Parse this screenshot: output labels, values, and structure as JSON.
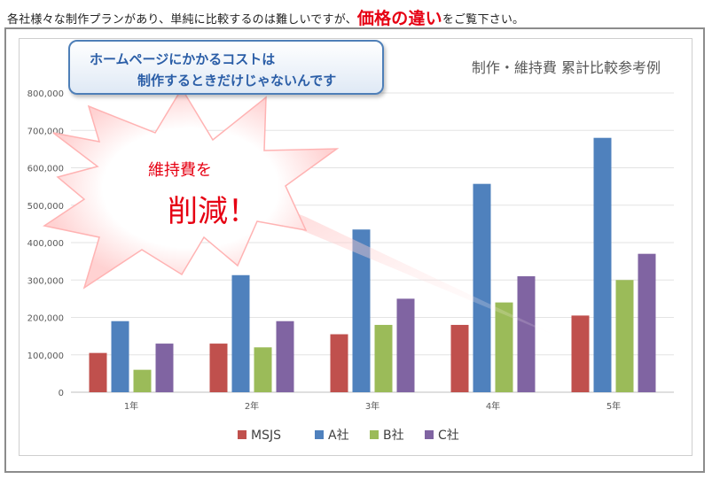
{
  "intro": {
    "prefix": "各社様々な制作プランがあり、単純に比較するのは難しいですが、",
    "highlight": "価格の違い",
    "suffix": "をご覧下さい。"
  },
  "callout": {
    "line1": "ホームページにかかるコストは",
    "line2": "制作するときだけじゃないんです"
  },
  "burst": {
    "line1": "維持費を",
    "line2": "削減！"
  },
  "colors": {
    "MSJS": "#c0504d",
    "A社": "#4f81bd",
    "B社": "#9bbb59",
    "C社": "#8064a2",
    "accent_red": "#e60012",
    "callout_text": "#2b5ea7"
  },
  "chart_data": {
    "type": "bar",
    "title": "制作・維持費 累計比較参考例",
    "categories": [
      "1年",
      "2年",
      "3年",
      "4年",
      "5年"
    ],
    "series": [
      {
        "name": "MSJS",
        "values": [
          105000,
          130000,
          155000,
          180000,
          205000
        ]
      },
      {
        "name": "A社",
        "values": [
          190000,
          313000,
          435000,
          557000,
          680000
        ]
      },
      {
        "name": "B社",
        "values": [
          60000,
          120000,
          180000,
          240000,
          300000
        ]
      },
      {
        "name": "C社",
        "values": [
          130000,
          190000,
          250000,
          310000,
          370000
        ]
      }
    ],
    "ylim": [
      0,
      800000
    ],
    "yticks": [
      "0",
      "100,000",
      "200,000",
      "300,000",
      "400,000",
      "500,000",
      "600,000",
      "700,000",
      "800,000"
    ],
    "grid": true,
    "legend": "bottom"
  }
}
